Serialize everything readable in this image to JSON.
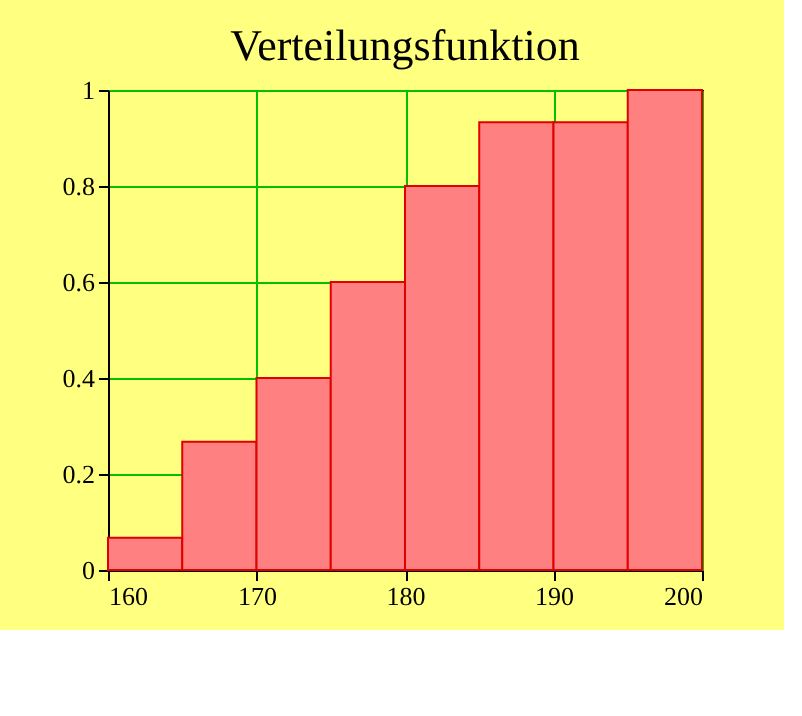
{
  "chart_data": {
    "type": "histogram",
    "title": "Verteilungsfunktion",
    "bins": [
      160,
      165,
      170,
      175,
      180,
      185,
      190,
      195,
      200
    ],
    "values": [
      0.067,
      0.267,
      0.4,
      0.6,
      0.8,
      0.933,
      0.933,
      1.0
    ],
    "color": "#ff8080",
    "xlim": [
      160,
      200
    ],
    "xticks": [
      160,
      170,
      180,
      190,
      200
    ],
    "ylim": [
      0,
      1
    ],
    "yticks": [
      0,
      0.2,
      0.4,
      0.6,
      0.8,
      1
    ],
    "grid": true
  }
}
